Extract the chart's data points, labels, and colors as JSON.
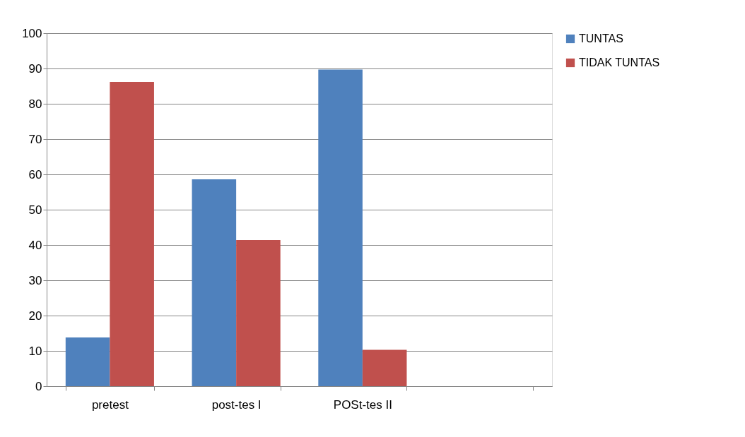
{
  "chart_data": {
    "type": "bar",
    "categories": [
      "pretest",
      "post-tes I",
      "POSt-tes II",
      null
    ],
    "series": [
      {
        "name": "TUNTAS",
        "color": "#4f81bd",
        "values": [
          13.8,
          58.6,
          89.7,
          null
        ]
      },
      {
        "name": "TIDAK TUNTAS",
        "color": "#c0504d",
        "values": [
          86.2,
          41.4,
          10.3,
          null
        ]
      }
    ],
    "ylim": [
      0,
      100
    ],
    "yticks": [
      0,
      10,
      20,
      30,
      40,
      50,
      60,
      70,
      80,
      90,
      100
    ],
    "grid": "y",
    "legend": "right"
  }
}
